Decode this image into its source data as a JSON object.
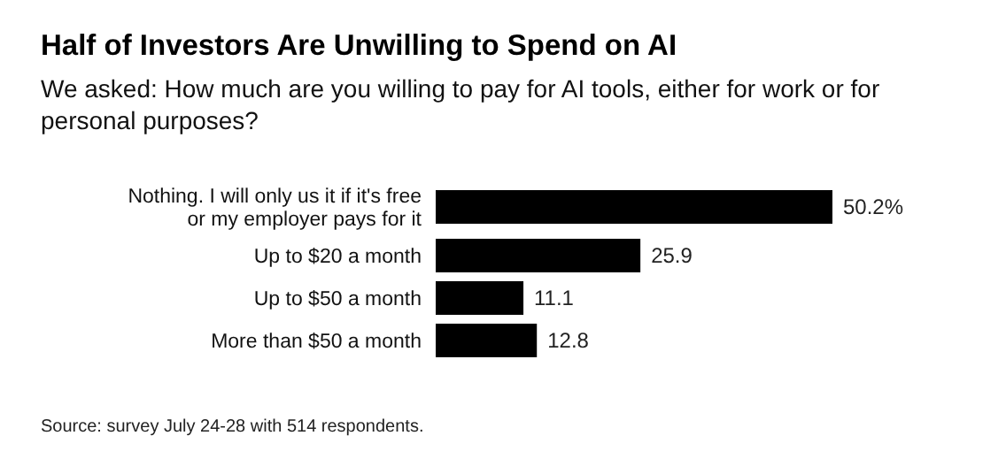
{
  "chart_data": {
    "type": "bar",
    "orientation": "horizontal",
    "title": "Half of Investors Are Unwilling to Spend on AI",
    "subtitle": "We asked: How much are you willing to pay for AI tools, either for work or for personal purposes?",
    "categories": [
      "Nothing. I will only us it if it's free or my employer pays for it",
      "Up to $20 a month",
      "Up to $50 a month",
      "More than $50 a month"
    ],
    "values": [
      50.2,
      25.9,
      11.1,
      12.8
    ],
    "value_labels": [
      "50.2%",
      "25.9",
      "11.1",
      "12.8"
    ],
    "color": "#000000",
    "annotations": [
      "Source: survey July 24-28 with 514 respondents."
    ]
  }
}
